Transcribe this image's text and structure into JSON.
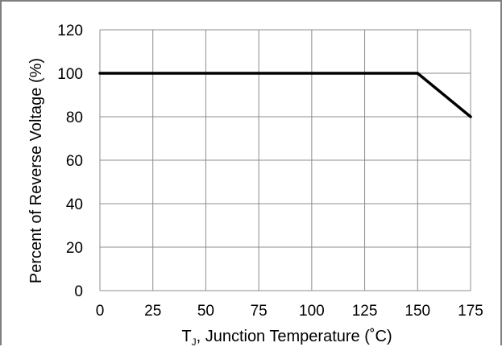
{
  "chart_data": {
    "type": "line",
    "xlabel_parts": {
      "symbol": "T",
      "subscript": "J",
      "rest": ", Junction Temperature (˚C)"
    },
    "ylabel": "Percent of Reverse Voltage (%)",
    "xlim": [
      0,
      175
    ],
    "ylim": [
      0,
      120
    ],
    "x_ticks": [
      0,
      25,
      50,
      75,
      100,
      125,
      150,
      175
    ],
    "y_ticks": [
      0,
      20,
      40,
      60,
      80,
      100,
      120
    ],
    "grid": true,
    "legend": "none",
    "series": [
      {
        "x": [
          0,
          150,
          175
        ],
        "y": [
          100,
          100,
          80
        ],
        "color": "#000000"
      }
    ]
  }
}
